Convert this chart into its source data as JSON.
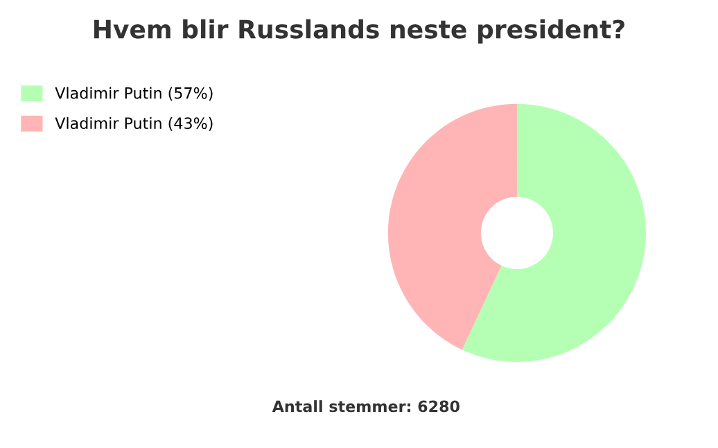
{
  "chart_data": {
    "type": "donut",
    "title": "Hvem blir Russlands neste president?",
    "categories": [
      "Vladimir Putin (57%)",
      "Vladimir Putin (43%)"
    ],
    "values": [
      57,
      43
    ],
    "colors": [
      "#b5ffb5",
      "#ffb5b5"
    ],
    "legend": "top left",
    "annotations": [
      "Antall stemmer: 6280"
    ]
  }
}
